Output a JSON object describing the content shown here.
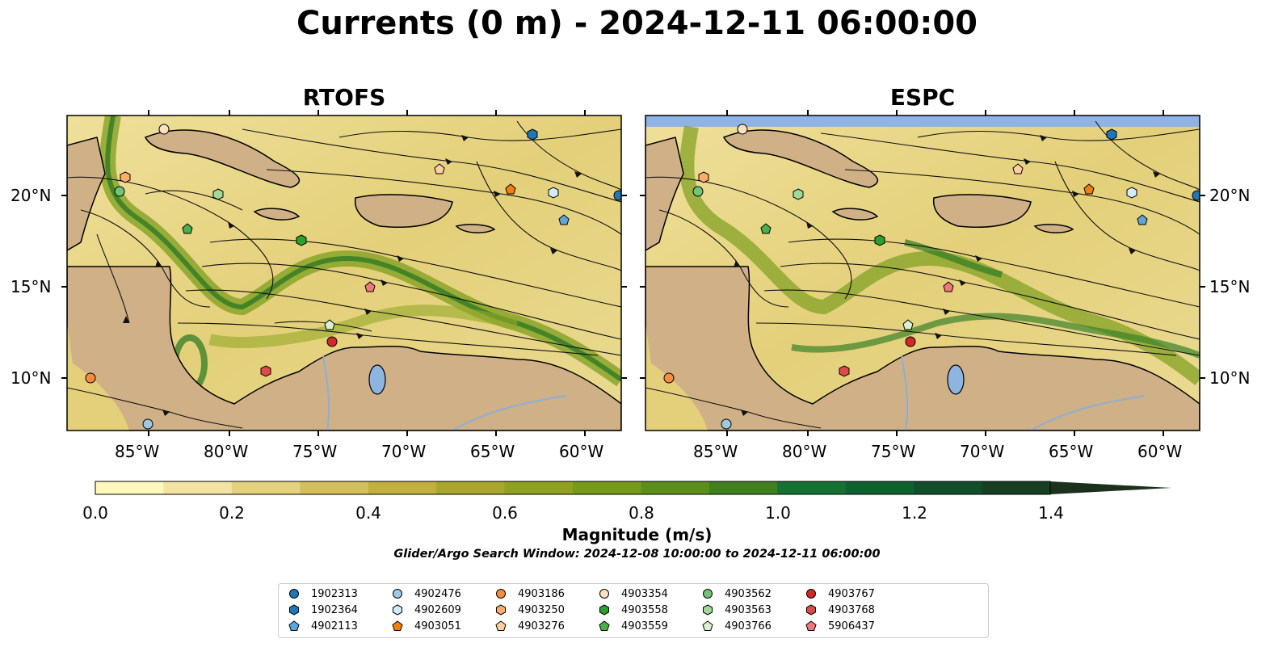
{
  "title": "Currents (0 m) - 2024-12-11 06:00:00",
  "panels": [
    {
      "title": "RTOFS"
    },
    {
      "title": "ESPC"
    }
  ],
  "axes": {
    "x_ticks": [
      "85°W",
      "80°W",
      "75°W",
      "70°W",
      "65°W",
      "60°W"
    ],
    "y_ticks": [
      "20°N",
      "15°N",
      "10°N"
    ]
  },
  "colorbar": {
    "label": "Magnitude (m/s)",
    "ticks": [
      "0.0",
      "0.2",
      "0.4",
      "0.6",
      "0.8",
      "1.0",
      "1.2",
      "1.4"
    ],
    "colors": [
      "#fff7bc",
      "#f3e3a0",
      "#e4d27e",
      "#d4bf5e",
      "#c0b040",
      "#a8a62e",
      "#8fa022",
      "#769a1a",
      "#5c8e1c",
      "#40801e",
      "#167232",
      "#0e6230",
      "#114e2a",
      "#163f24",
      "#1b301d"
    ]
  },
  "subtitle": "Glider/Argo Search Window: 2024-12-08 10:00:00 to 2024-12-11 06:00:00",
  "legend": [
    {
      "id": "1902313",
      "marker": "circle",
      "color": "#1f77b4"
    },
    {
      "id": "1902364",
      "marker": "hexagon",
      "color": "#1f77b4"
    },
    {
      "id": "4902113",
      "marker": "pentagon",
      "color": "#5da5da"
    },
    {
      "id": "4902476",
      "marker": "circle",
      "color": "#9ecae1"
    },
    {
      "id": "4902609",
      "marker": "hexagon",
      "color": "#d4ecf9"
    },
    {
      "id": "4903051",
      "marker": "pentagon",
      "color": "#f07f0e"
    },
    {
      "id": "4903186",
      "marker": "circle",
      "color": "#fd8d3c"
    },
    {
      "id": "4903250",
      "marker": "hexagon",
      "color": "#fdae6b"
    },
    {
      "id": "4903276",
      "marker": "pentagon",
      "color": "#fdd0a2"
    },
    {
      "id": "4903354",
      "marker": "circle",
      "color": "#fde0c5"
    },
    {
      "id": "4903558",
      "marker": "hexagon",
      "color": "#2ca02c"
    },
    {
      "id": "4903559",
      "marker": "pentagon",
      "color": "#4daf4a"
    },
    {
      "id": "4903562",
      "marker": "circle",
      "color": "#74c476"
    },
    {
      "id": "4903563",
      "marker": "hexagon",
      "color": "#a1d99b"
    },
    {
      "id": "4903766",
      "marker": "pentagon",
      "color": "#d9f0d3"
    },
    {
      "id": "4903767",
      "marker": "circle",
      "color": "#d62728"
    },
    {
      "id": "4903768",
      "marker": "hexagon",
      "color": "#de4b4b"
    },
    {
      "id": "5906437",
      "marker": "pentagon",
      "color": "#f0777a"
    }
  ]
}
